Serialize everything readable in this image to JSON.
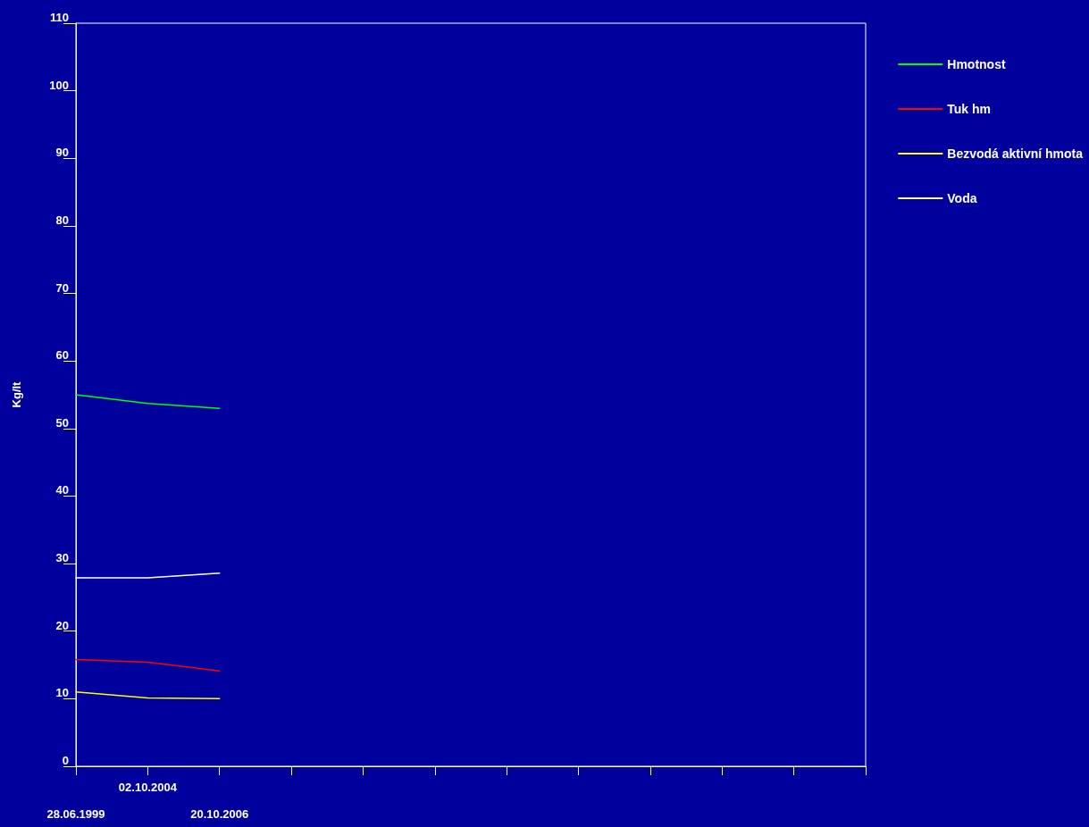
{
  "chart_data": {
    "type": "line",
    "ylabel": "Kg/lt",
    "categories": [
      "28.06.1999",
      "02.10.2004",
      "20.10.2006",
      null,
      null,
      null,
      null,
      null,
      null,
      null,
      null,
      null
    ],
    "series": [
      {
        "name": "Hmotnost",
        "color": "#00ff00",
        "values": [
          55.0,
          53.7,
          53.0,
          null,
          null,
          null,
          null,
          null,
          null,
          null,
          null,
          null
        ]
      },
      {
        "name": "Tuk hm",
        "color": "#ff0000",
        "values": [
          15.8,
          15.4,
          14.1,
          null,
          null,
          null,
          null,
          null,
          null,
          null,
          null,
          null
        ]
      },
      {
        "name": "Bezvodá aktivní hmota",
        "color": "#ffff00",
        "values": [
          11.0,
          10.1,
          10.0,
          null,
          null,
          null,
          null,
          null,
          null,
          null,
          null,
          null
        ]
      },
      {
        "name": "Voda",
        "color": "#ffffff",
        "values": [
          27.9,
          27.9,
          28.6,
          null,
          null,
          null,
          null,
          null,
          null,
          null,
          null,
          null
        ]
      }
    ],
    "ylim": [
      0,
      110
    ],
    "yticks": [
      0,
      10,
      20,
      30,
      40,
      50,
      60,
      70,
      80,
      90,
      100,
      110
    ],
    "grid": false,
    "legend": "right",
    "marker": "none"
  }
}
